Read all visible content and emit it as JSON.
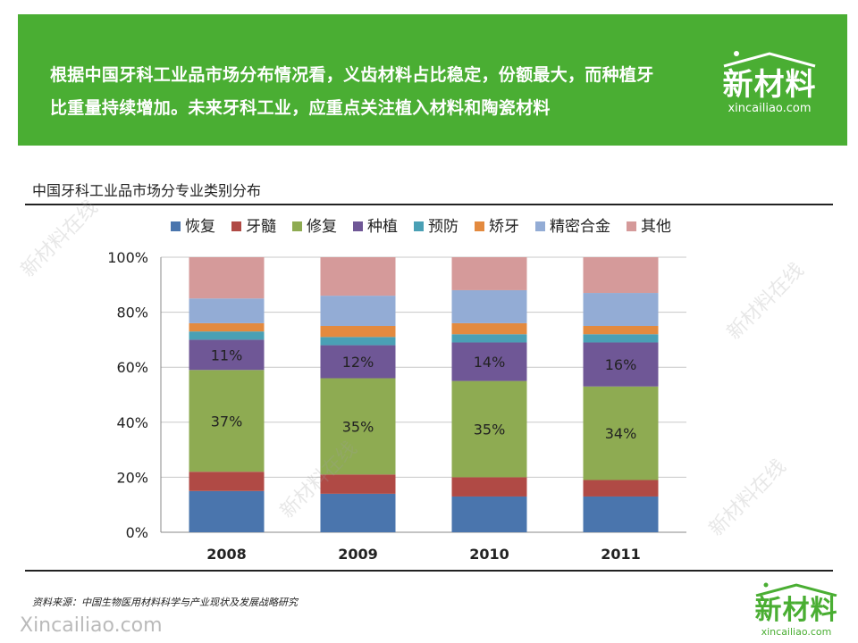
{
  "banner": {
    "text_line1": "根据中国牙科工业品市场分布情况看，义齿材料占比稳定，份额最大，而种植牙",
    "text_line2": "比重量持续增加。未来牙科工业，应重点关注植入材料和陶瓷材料",
    "background_color": "#4aae33"
  },
  "logo": {
    "main": "新材料",
    "sub": "xincailiao.com"
  },
  "section_title": "中国牙科工业品市场分专业类别分布",
  "source_note": "资料来源：中国生物医用材料科学与产业现状及发展战略研究",
  "watermark": {
    "text": "新材料在线",
    "url_text": "Xincailiao.com"
  },
  "chart_data": {
    "type": "bar",
    "stacked": true,
    "categories": [
      "2008",
      "2009",
      "2010",
      "2011"
    ],
    "ylim": [
      0,
      100
    ],
    "yticks": [
      "0%",
      "20%",
      "40%",
      "60%",
      "80%",
      "100%"
    ],
    "legend_position": "top",
    "grid": true,
    "series": [
      {
        "name": "恢复",
        "color": "#4a75ad",
        "values": [
          15,
          14,
          13,
          13
        ]
      },
      {
        "name": "牙髓",
        "color": "#b04a45",
        "values": [
          7,
          7,
          7,
          6
        ]
      },
      {
        "name": "修复",
        "color": "#8eab52",
        "values": [
          37,
          35,
          35,
          34
        ],
        "labels": [
          "37%",
          "35%",
          "35%",
          "34%"
        ]
      },
      {
        "name": "种植",
        "color": "#6f5796",
        "values": [
          11,
          12,
          14,
          16
        ],
        "labels": [
          "11%",
          "12%",
          "14%",
          "16%"
        ]
      },
      {
        "name": "预防",
        "color": "#4aa0b5",
        "values": [
          3,
          3,
          3,
          3
        ]
      },
      {
        "name": "矫牙",
        "color": "#e38a3f",
        "values": [
          3,
          4,
          4,
          3
        ]
      },
      {
        "name": "精密合金",
        "color": "#93acd5",
        "values": [
          9,
          11,
          12,
          12
        ]
      },
      {
        "name": "其他",
        "color": "#d59a9a",
        "values": [
          15,
          14,
          12,
          13
        ]
      }
    ]
  }
}
